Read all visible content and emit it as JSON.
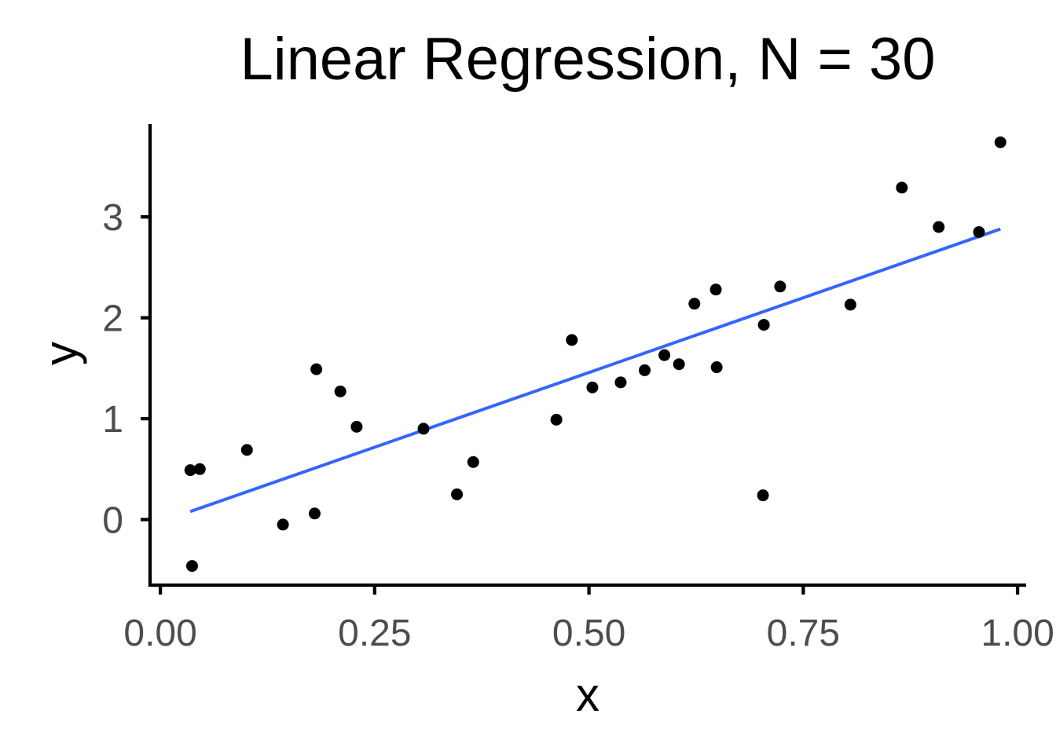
{
  "chart_data": {
    "type": "scatter",
    "title": "Linear Regression, N = 30",
    "xlabel": "x",
    "ylabel": "y",
    "xlim": [
      -0.012,
      1.01
    ],
    "ylim": [
      -0.65,
      3.92
    ],
    "x_ticks": [
      {
        "value": 0.0,
        "label": "0.00"
      },
      {
        "value": 0.25,
        "label": "0.25"
      },
      {
        "value": 0.5,
        "label": "0.50"
      },
      {
        "value": 0.75,
        "label": "0.75"
      },
      {
        "value": 1.0,
        "label": "1.00"
      }
    ],
    "y_ticks": [
      {
        "value": 0,
        "label": "0"
      },
      {
        "value": 1,
        "label": "1"
      },
      {
        "value": 2,
        "label": "2"
      },
      {
        "value": 3,
        "label": "3"
      }
    ],
    "grid": false,
    "legend": "none",
    "points": [
      {
        "x": 0.035,
        "y": 0.49
      },
      {
        "x": 0.046,
        "y": 0.5
      },
      {
        "x": 0.037,
        "y": -0.46
      },
      {
        "x": 0.101,
        "y": 0.69
      },
      {
        "x": 0.143,
        "y": -0.05
      },
      {
        "x": 0.18,
        "y": 0.06
      },
      {
        "x": 0.182,
        "y": 1.49
      },
      {
        "x": 0.21,
        "y": 1.27
      },
      {
        "x": 0.229,
        "y": 0.92
      },
      {
        "x": 0.307,
        "y": 0.9
      },
      {
        "x": 0.346,
        "y": 0.25
      },
      {
        "x": 0.365,
        "y": 0.57
      },
      {
        "x": 0.462,
        "y": 0.99
      },
      {
        "x": 0.48,
        "y": 1.78
      },
      {
        "x": 0.504,
        "y": 1.31
      },
      {
        "x": 0.537,
        "y": 1.36
      },
      {
        "x": 0.565,
        "y": 1.48
      },
      {
        "x": 0.588,
        "y": 1.63
      },
      {
        "x": 0.605,
        "y": 1.54
      },
      {
        "x": 0.623,
        "y": 2.14
      },
      {
        "x": 0.648,
        "y": 2.28
      },
      {
        "x": 0.649,
        "y": 1.51
      },
      {
        "x": 0.703,
        "y": 0.24
      },
      {
        "x": 0.704,
        "y": 1.93
      },
      {
        "x": 0.723,
        "y": 2.31
      },
      {
        "x": 0.805,
        "y": 2.13
      },
      {
        "x": 0.865,
        "y": 3.29
      },
      {
        "x": 0.908,
        "y": 2.9
      },
      {
        "x": 0.955,
        "y": 2.85
      },
      {
        "x": 0.98,
        "y": 3.74
      }
    ],
    "fit_line": {
      "x": [
        0.035,
        0.98
      ],
      "y": [
        0.08,
        2.88
      ]
    },
    "colors": {
      "points": "#000000",
      "fit_line": "#3366ff",
      "axis": "#000000",
      "tick_label": "#4d4d4d"
    }
  }
}
